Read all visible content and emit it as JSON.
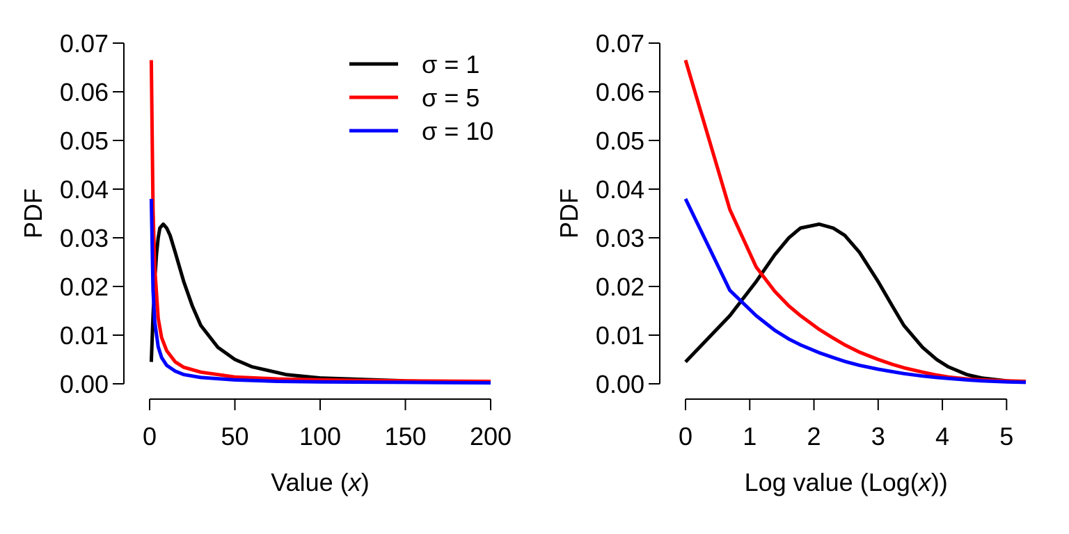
{
  "chart_data": [
    {
      "type": "line",
      "title": "",
      "xlabel": "Value (x)",
      "ylabel": "PDF",
      "xlim": [
        0,
        200
      ],
      "ylim": [
        0,
        0.07
      ],
      "x_ticks": [
        0,
        50,
        100,
        150,
        200
      ],
      "x_tick_labels": [
        "0",
        "50",
        "100",
        "150",
        "200"
      ],
      "y_ticks": [
        0,
        0.01,
        0.02,
        0.03,
        0.04,
        0.05,
        0.06,
        0.07
      ],
      "y_tick_labels": [
        "0.00",
        "0.01",
        "0.02",
        "0.03",
        "0.04",
        "0.05",
        "0.06",
        "0.07"
      ],
      "grid": false,
      "legend": {
        "placement": "top-right",
        "entries": [
          "σ = 1",
          "σ = 5",
          "σ = 10"
        ]
      },
      "series": [
        {
          "name": "σ = 1",
          "color": "#000000",
          "points": [
            [
              1,
              0.0045
            ],
            [
              2,
              0.014
            ],
            [
              3,
              0.021
            ],
            [
              4,
              0.0265
            ],
            [
              5,
              0.03
            ],
            [
              6,
              0.032
            ],
            [
              8,
              0.0328
            ],
            [
              10,
              0.032
            ],
            [
              12,
              0.0305
            ],
            [
              15,
              0.027
            ],
            [
              20,
              0.021
            ],
            [
              25,
              0.016
            ],
            [
              30,
              0.012
            ],
            [
              40,
              0.0075
            ],
            [
              50,
              0.005
            ],
            [
              60,
              0.0035
            ],
            [
              80,
              0.0019
            ],
            [
              100,
              0.0012
            ],
            [
              150,
              0.0006
            ],
            [
              200,
              0.0004
            ]
          ]
        },
        {
          "name": "σ = 5",
          "color": "#ff0000",
          "points": [
            [
              1,
              0.0665
            ],
            [
              2,
              0.0358
            ],
            [
              3,
              0.024
            ],
            [
              5,
              0.0135
            ],
            [
              7,
              0.0095
            ],
            [
              10,
              0.0068
            ],
            [
              15,
              0.0045
            ],
            [
              20,
              0.0034
            ],
            [
              30,
              0.0024
            ],
            [
              50,
              0.0014
            ],
            [
              75,
              0.001
            ],
            [
              100,
              0.0008
            ],
            [
              150,
              0.0006
            ],
            [
              200,
              0.0005
            ]
          ]
        },
        {
          "name": "σ = 10",
          "color": "#0000ff",
          "points": [
            [
              1,
              0.038
            ],
            [
              2,
              0.0192
            ],
            [
              3,
              0.0128
            ],
            [
              5,
              0.0076
            ],
            [
              7,
              0.0054
            ],
            [
              10,
              0.0038
            ],
            [
              15,
              0.0026
            ],
            [
              20,
              0.0019
            ],
            [
              30,
              0.0013
            ],
            [
              50,
              0.0008
            ],
            [
              75,
              0.0005
            ],
            [
              100,
              0.0004
            ],
            [
              150,
              0.0003
            ],
            [
              200,
              0.0002
            ]
          ]
        }
      ]
    },
    {
      "type": "line",
      "title": "",
      "xlabel": "Log value (Log(x))",
      "ylabel": "PDF",
      "xlim": [
        0,
        5.3
      ],
      "ylim": [
        0,
        0.07
      ],
      "x_ticks": [
        0,
        1,
        2,
        3,
        4,
        5
      ],
      "x_tick_labels": [
        "0",
        "1",
        "2",
        "3",
        "4",
        "5"
      ],
      "y_ticks": [
        0,
        0.01,
        0.02,
        0.03,
        0.04,
        0.05,
        0.06,
        0.07
      ],
      "y_tick_labels": [
        "0.00",
        "0.01",
        "0.02",
        "0.03",
        "0.04",
        "0.05",
        "0.06",
        "0.07"
      ],
      "grid": false,
      "series": [
        {
          "name": "σ = 1",
          "color": "#000000",
          "points": [
            [
              0,
              0.0045
            ],
            [
              0.69,
              0.014
            ],
            [
              1.1,
              0.021
            ],
            [
              1.39,
              0.0265
            ],
            [
              1.61,
              0.03
            ],
            [
              1.79,
              0.032
            ],
            [
              2.08,
              0.0328
            ],
            [
              2.3,
              0.032
            ],
            [
              2.48,
              0.0305
            ],
            [
              2.71,
              0.027
            ],
            [
              3.0,
              0.021
            ],
            [
              3.22,
              0.016
            ],
            [
              3.4,
              0.012
            ],
            [
              3.69,
              0.0075
            ],
            [
              3.91,
              0.005
            ],
            [
              4.09,
              0.0035
            ],
            [
              4.38,
              0.0019
            ],
            [
              4.61,
              0.0012
            ],
            [
              5.01,
              0.0006
            ],
            [
              5.3,
              0.0004
            ]
          ]
        },
        {
          "name": "σ = 5",
          "color": "#ff0000",
          "points": [
            [
              0,
              0.0665
            ],
            [
              0.69,
              0.0358
            ],
            [
              1.1,
              0.024
            ],
            [
              1.39,
              0.019
            ],
            [
              1.61,
              0.016
            ],
            [
              1.79,
              0.014
            ],
            [
              2.08,
              0.0112
            ],
            [
              2.3,
              0.0094
            ],
            [
              2.48,
              0.008
            ],
            [
              2.71,
              0.0065
            ],
            [
              3.0,
              0.005
            ],
            [
              3.22,
              0.004
            ],
            [
              3.4,
              0.0033
            ],
            [
              3.69,
              0.0024
            ],
            [
              3.91,
              0.0018
            ],
            [
              4.09,
              0.0014
            ],
            [
              4.38,
              0.001
            ],
            [
              4.61,
              0.0008
            ],
            [
              5.01,
              0.0006
            ],
            [
              5.3,
              0.0005
            ]
          ]
        },
        {
          "name": "σ = 10",
          "color": "#0000ff",
          "points": [
            [
              0,
              0.038
            ],
            [
              0.69,
              0.0192
            ],
            [
              1.1,
              0.014
            ],
            [
              1.39,
              0.011
            ],
            [
              1.61,
              0.0092
            ],
            [
              1.79,
              0.008
            ],
            [
              2.08,
              0.0064
            ],
            [
              2.3,
              0.0054
            ],
            [
              2.48,
              0.0046
            ],
            [
              2.71,
              0.0038
            ],
            [
              3.0,
              0.003
            ],
            [
              3.22,
              0.0025
            ],
            [
              3.4,
              0.0021
            ],
            [
              3.69,
              0.0016
            ],
            [
              3.91,
              0.0013
            ],
            [
              4.09,
              0.0011
            ],
            [
              4.38,
              0.0008
            ],
            [
              4.61,
              0.0006
            ],
            [
              5.01,
              0.0004
            ],
            [
              5.3,
              0.0003
            ]
          ]
        }
      ]
    }
  ]
}
